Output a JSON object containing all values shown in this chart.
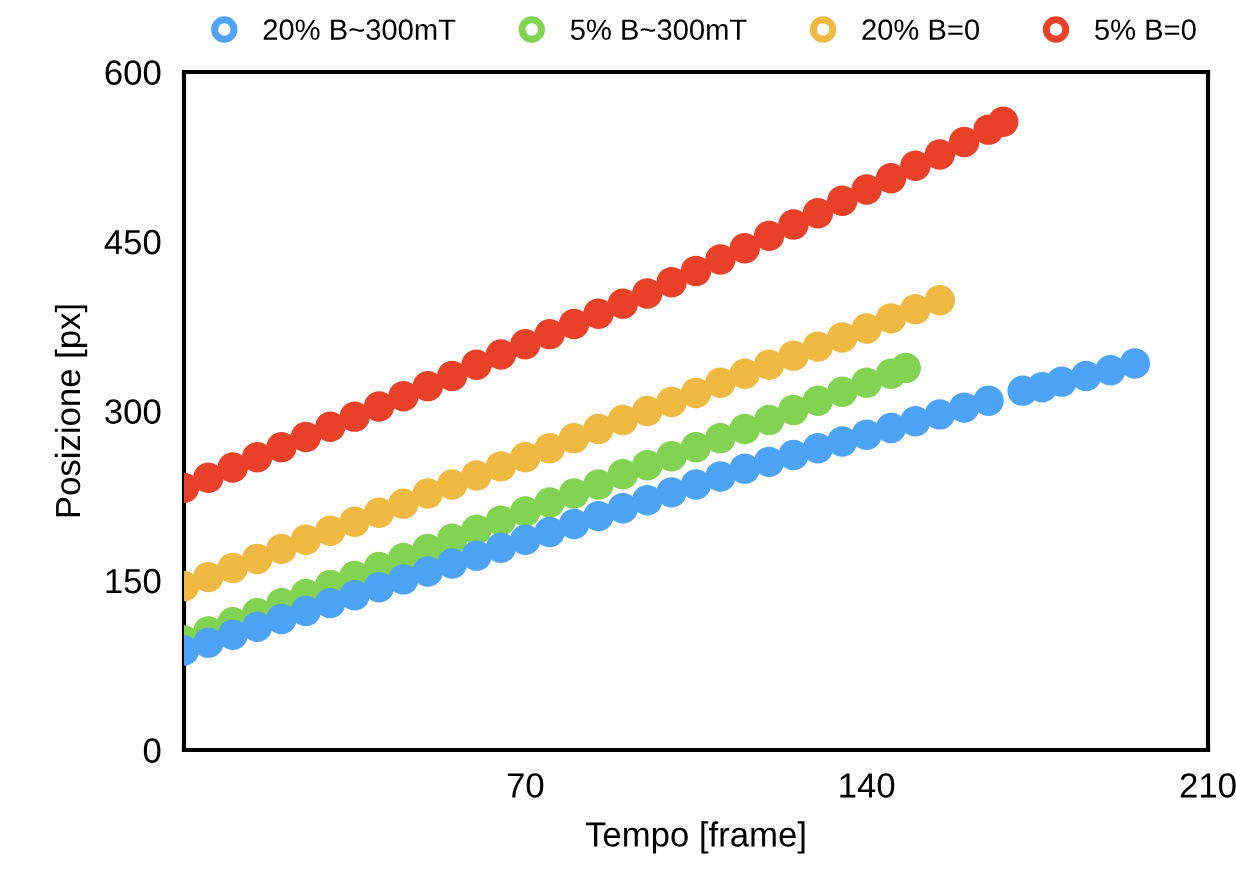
{
  "chart_data": {
    "type": "scatter",
    "xlabel": "Tempo [frame]",
    "ylabel": "Posizione [px]",
    "xlim": [
      0,
      210
    ],
    "ylim": [
      0,
      600
    ],
    "xticks": [
      70,
      140,
      210
    ],
    "yticks": [
      0,
      150,
      300,
      450,
      600
    ],
    "grid": false,
    "legend": "top",
    "marker": "circle",
    "series": [
      {
        "name": "20% B~300mT",
        "color": "#4da3f5",
        "x": [
          0,
          5,
          10,
          15,
          20,
          25,
          30,
          35,
          40,
          45,
          50,
          55,
          60,
          65,
          70,
          75,
          80,
          85,
          90,
          95,
          100,
          105,
          110,
          115,
          120,
          125,
          130,
          135,
          140,
          145,
          150,
          155,
          160,
          165,
          172,
          176,
          180,
          185,
          190,
          195
        ],
        "values": [
          88,
          95,
          102,
          109,
          116,
          123,
          130,
          137,
          144,
          151,
          158,
          165,
          172,
          179,
          186,
          193,
          200,
          207,
          214,
          221,
          228,
          235,
          242,
          249,
          255,
          261,
          267,
          273,
          279,
          285,
          291,
          297,
          303,
          309,
          318,
          321,
          326,
          331,
          336,
          342
        ]
      },
      {
        "name": "5% B~300mT",
        "color": "#82d352",
        "x": [
          0,
          5,
          10,
          15,
          20,
          25,
          30,
          35,
          40,
          45,
          50,
          55,
          60,
          65,
          70,
          75,
          80,
          85,
          90,
          95,
          100,
          105,
          110,
          115,
          120,
          125,
          130,
          135,
          140,
          145,
          148
        ],
        "values": [
          97,
          105,
          113,
          121,
          130,
          138,
          146,
          154,
          162,
          170,
          178,
          187,
          195,
          203,
          211,
          219,
          227,
          235,
          244,
          252,
          260,
          268,
          276,
          284,
          292,
          301,
          309,
          317,
          325,
          333,
          338
        ]
      },
      {
        "name": "20% B=0",
        "color": "#f0b941",
        "x": [
          0,
          5,
          10,
          15,
          20,
          25,
          30,
          35,
          40,
          45,
          50,
          55,
          60,
          65,
          70,
          75,
          80,
          85,
          90,
          95,
          100,
          105,
          110,
          115,
          120,
          125,
          130,
          135,
          140,
          145,
          150,
          155
        ],
        "values": [
          145,
          153,
          161,
          169,
          178,
          186,
          194,
          202,
          210,
          218,
          227,
          235,
          243,
          251,
          259,
          267,
          276,
          284,
          292,
          300,
          308,
          316,
          325,
          333,
          341,
          349,
          357,
          365,
          373,
          382,
          390,
          398
        ]
      },
      {
        "name": "5% B=0",
        "color": "#e94128",
        "x": [
          0,
          5,
          10,
          15,
          20,
          25,
          30,
          35,
          40,
          45,
          50,
          55,
          60,
          65,
          70,
          75,
          80,
          85,
          90,
          95,
          100,
          105,
          110,
          115,
          120,
          125,
          130,
          135,
          140,
          145,
          150,
          155,
          160,
          165,
          168
        ],
        "values": [
          232,
          241,
          250,
          259,
          268,
          277,
          286,
          295,
          304,
          313,
          322,
          331,
          341,
          350,
          359,
          368,
          377,
          386,
          395,
          404,
          414,
          424,
          434,
          444,
          455,
          465,
          475,
          486,
          496,
          506,
          517,
          527,
          538,
          549,
          556
        ]
      }
    ]
  }
}
